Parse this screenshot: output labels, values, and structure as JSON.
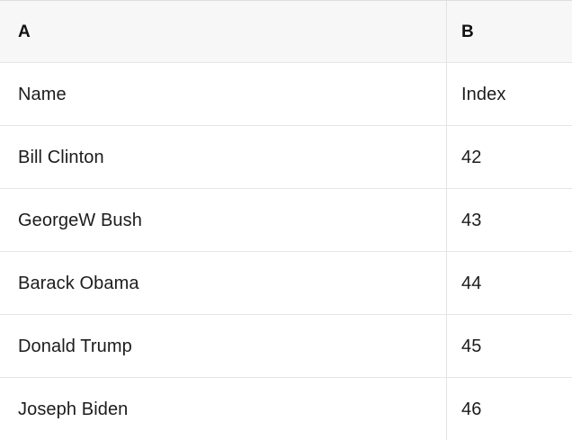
{
  "table": {
    "columns": [
      {
        "label": "A"
      },
      {
        "label": "B"
      }
    ],
    "rows": [
      {
        "a": "Name",
        "b": "Index"
      },
      {
        "a": "Bill Clinton",
        "b": "42"
      },
      {
        "a": "GeorgeW Bush",
        "b": "43"
      },
      {
        "a": "Barack Obama",
        "b": "44"
      },
      {
        "a": "Donald Trump",
        "b": "45"
      },
      {
        "a": "Joseph Biden",
        "b": "46"
      }
    ]
  },
  "colors": {
    "header_bg": "#f7f7f7",
    "grid_border": "#e3e3e3",
    "text": "#1c1c1c"
  }
}
